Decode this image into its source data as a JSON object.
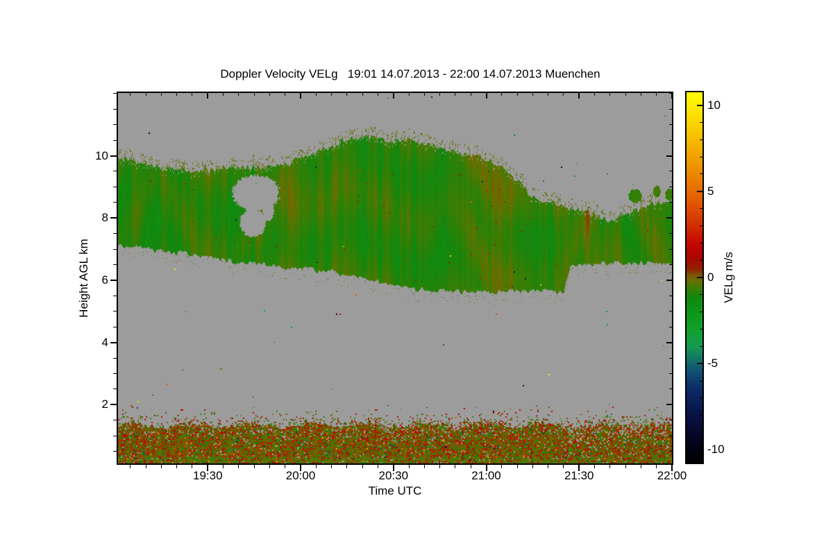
{
  "figure": {
    "title": "Doppler Velocity VELg   19:01 14.07.2013 - 22:00 14.07.2013 Muenchen",
    "station": "Muenchen",
    "time_span": "19:01 14.07.2013 - 22:00 14.07.2013"
  },
  "chart_data": {
    "type": "heatmap",
    "title": "Doppler Velocity VELg   19:01 14.07.2013 - 22:00 14.07.2013 Muenchen",
    "xlabel": "Time UTC",
    "ylabel": "Height AGL km",
    "grid": false,
    "x_axis": {
      "start": "19:01",
      "end": "22:00",
      "duration_min": 179,
      "major_ticks": [
        {
          "t_min": 29,
          "label": "19:30"
        },
        {
          "t_min": 59,
          "label": "20:00"
        },
        {
          "t_min": 89,
          "label": "20:30"
        },
        {
          "t_min": 119,
          "label": "21:00"
        },
        {
          "t_min": 149,
          "label": "21:30"
        },
        {
          "t_min": 179,
          "label": "22:00"
        }
      ],
      "minor_tick_every_min": 5,
      "first_minor_t_min": 4
    },
    "y_axis": {
      "min_km": 0.11,
      "max_km": 12.02,
      "major_ticks": [
        {
          "km": 2,
          "label": "2"
        },
        {
          "km": 4,
          "label": "4"
        },
        {
          "km": 6,
          "label": "6"
        },
        {
          "km": 8,
          "label": "8"
        },
        {
          "km": 10,
          "label": "10"
        }
      ],
      "minor_tick_every_km": 0.5
    },
    "colorbar": {
      "label": "VELg m/s",
      "min": -10.75,
      "max": 10.75,
      "major_ticks": [
        {
          "v": 10,
          "label": "10"
        },
        {
          "v": 5,
          "label": "5"
        },
        {
          "v": 0,
          "label": "0"
        },
        {
          "v": -5,
          "label": "-5"
        },
        {
          "v": -10,
          "label": "-10"
        }
      ],
      "minor_tick_every": 1,
      "stops": [
        [
          -10.75,
          "#000000"
        ],
        [
          -9.5,
          "#04041e"
        ],
        [
          -8,
          "#081244"
        ],
        [
          -6.5,
          "#0c2a64"
        ],
        [
          -5.5,
          "#104f74"
        ],
        [
          -5,
          "#12666e"
        ],
        [
          -4,
          "#169a50"
        ],
        [
          -3,
          "#12a02c"
        ],
        [
          -2,
          "#0d9617"
        ],
        [
          -1.2,
          "#12870e"
        ],
        [
          -0.6,
          "#3c7d04"
        ],
        [
          -0.15,
          "#6e6e00"
        ],
        [
          0.15,
          "#7d5200"
        ],
        [
          0.5,
          "#8f2000"
        ],
        [
          1.2,
          "#ad0400"
        ],
        [
          2,
          "#c30800"
        ],
        [
          3,
          "#d22e00"
        ],
        [
          4.5,
          "#e25c00"
        ],
        [
          6,
          "#ec8800"
        ],
        [
          7.5,
          "#f4ae00"
        ],
        [
          9,
          "#fbd500"
        ],
        [
          10.75,
          "#ffff00"
        ]
      ]
    },
    "no_data_color": "#9c9c9c",
    "regions": {
      "cloud_layer": {
        "description": "Mid-level cloud deck between about 5.6 and 10.7 km AGL, Doppler velocities mostly -1.8 to +0.3 m/s (green/olive)",
        "velocity_range_ms": [
          -1.8,
          0.35
        ],
        "top_profile": {
          "t_min": [
            0,
            6,
            12,
            18,
            25,
            32,
            40,
            48,
            55,
            62,
            69,
            76,
            82,
            88,
            95,
            102,
            109,
            116,
            121,
            126,
            130,
            133,
            137,
            141,
            146,
            150,
            154,
            158,
            162,
            167,
            171,
            175,
            179
          ],
          "h_km": [
            9.9,
            9.8,
            9.65,
            9.55,
            9.5,
            9.55,
            9.65,
            9.6,
            9.8,
            10.05,
            10.3,
            10.55,
            10.6,
            10.45,
            10.5,
            10.3,
            10.1,
            10.0,
            9.8,
            9.45,
            9.15,
            8.75,
            8.5,
            8.45,
            8.3,
            8.25,
            8.1,
            7.95,
            8.05,
            8.2,
            8.45,
            8.5,
            8.55
          ]
        },
        "base_profile": {
          "t_min": [
            0,
            10,
            20,
            29,
            38,
            52,
            62,
            70,
            78,
            84,
            90,
            97,
            105,
            113,
            120,
            128,
            135,
            142,
            144,
            146,
            152,
            160,
            170,
            179
          ],
          "h_km": [
            7.1,
            7.0,
            6.88,
            6.75,
            6.6,
            6.45,
            6.35,
            6.25,
            6.1,
            5.95,
            5.85,
            5.7,
            5.65,
            5.62,
            5.62,
            5.66,
            5.7,
            5.6,
            5.62,
            6.45,
            6.5,
            6.55,
            6.55,
            6.6
          ]
        },
        "holes": [
          {
            "t": 44.5,
            "h": 8.8,
            "rt": 7.6,
            "rh": 0.58
          },
          {
            "t": 43.5,
            "h": 7.85,
            "rt": 4.2,
            "rh": 0.45
          },
          {
            "t": 48.5,
            "h": 8.25,
            "rt": 1.8,
            "rh": 0.35
          }
        ],
        "blobs": [
          {
            "t": 167,
            "h": 8.7,
            "rt": 2.2,
            "rh": 0.22
          },
          {
            "t": 174,
            "h": 8.85,
            "rt": 1.2,
            "rh": 0.18
          },
          {
            "t": 178,
            "h": 8.75,
            "rt": 1.2,
            "rh": 0.2
          }
        ]
      },
      "boundary_layer": {
        "description": "Shallow echo layer from the surface up to about 1.3-1.7 km AGL; olive background with red (downward) and green speckles, fuzzy speckled top",
        "top_km_mean": 1.32,
        "base_km": 0.11,
        "speckle_fractions": {
          "olive": 0.62,
          "green": 0.18,
          "red": 0.16,
          "teal_navy": 0.02,
          "orange": 0.02
        }
      },
      "noise_specks": {
        "description": "isolated random colored pixels scattered in the gray no-data area",
        "count": 90
      }
    },
    "render_seed": 1337
  }
}
